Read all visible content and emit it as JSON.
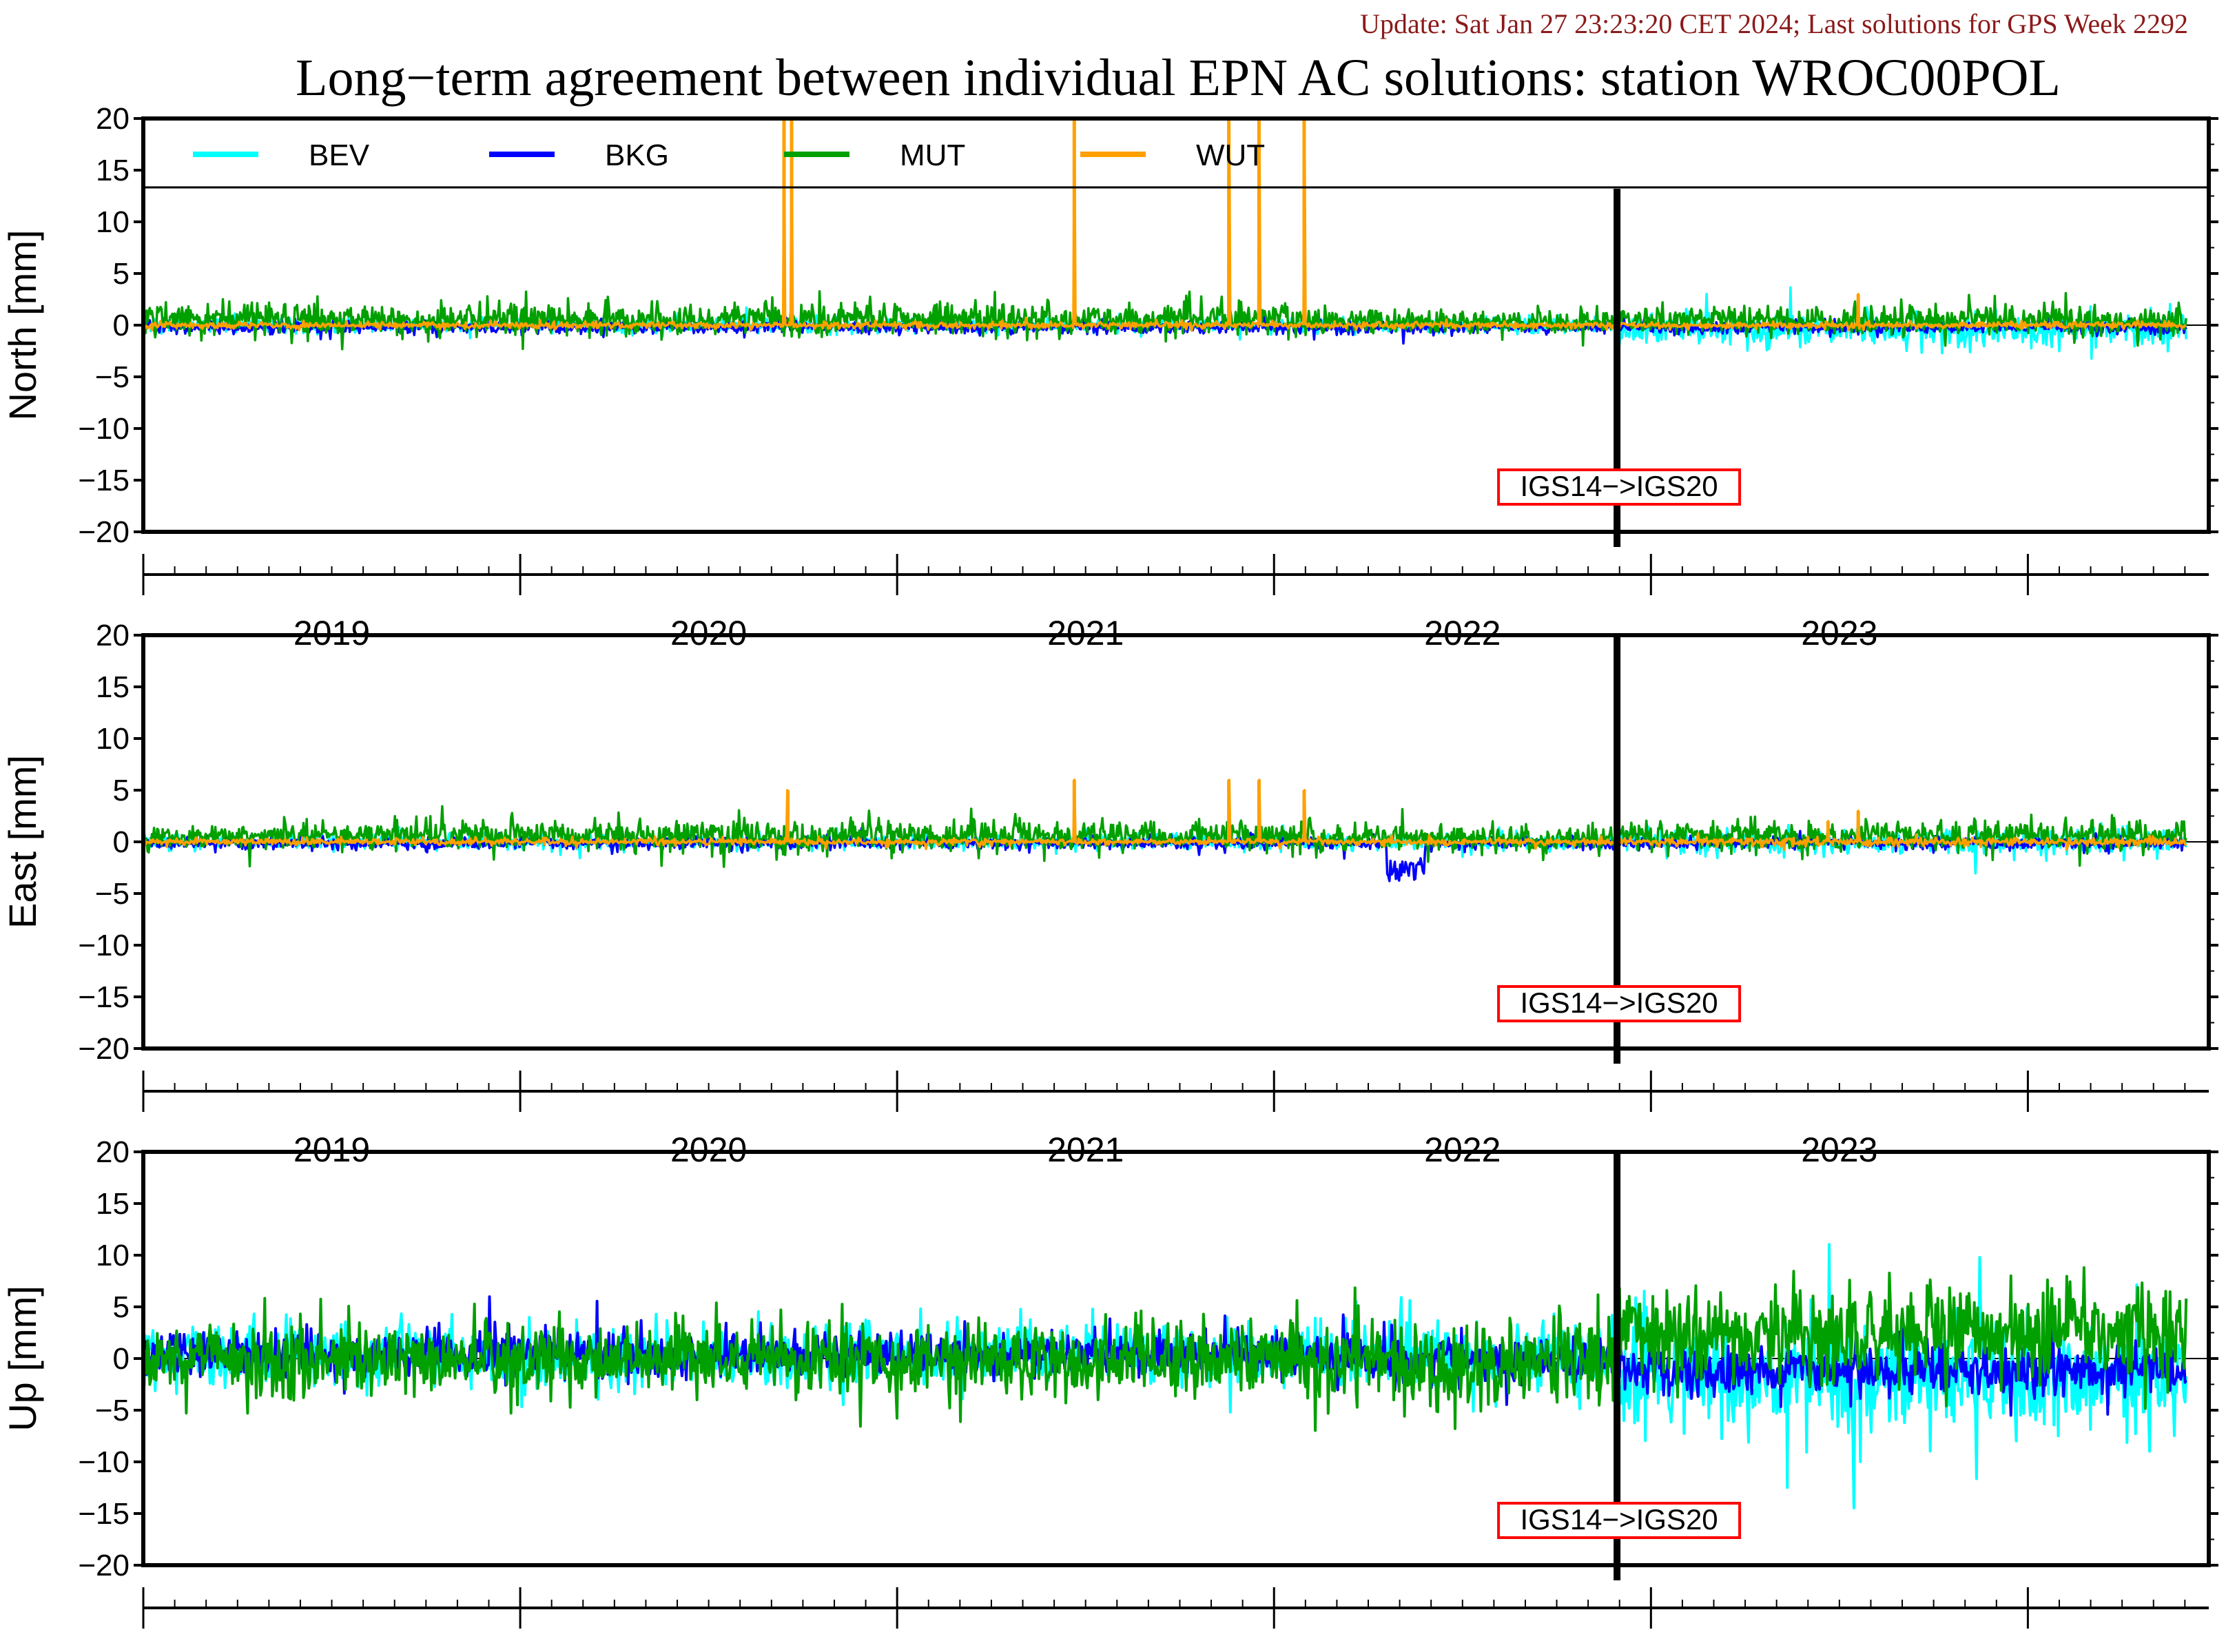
{
  "header": {
    "update_text": "Update: Sat Jan 27 23:23:20 CET 2024; Last solutions for GPS Week 2292",
    "title": "Long−term agreement between individual EPN AC solutions: station WROC00POL"
  },
  "colors": {
    "BEV": "#00ffff",
    "BKG": "#0000ff",
    "MUT": "#00a000",
    "WUT": "#ffa000",
    "update_text": "#8b1a1a",
    "marker_box": "#ff0000"
  },
  "chart_data": [
    {
      "type": "line",
      "component": "north",
      "ylabel": "North [mm]",
      "ylim": [
        -20,
        20
      ],
      "yticks": [
        20,
        15,
        10,
        5,
        0,
        -5,
        -10,
        -15,
        -20
      ],
      "ytick_labels": [
        "20",
        "15",
        "10",
        "5",
        "0",
        "−5",
        "−10",
        "−15",
        "−20"
      ],
      "xlim": [
        2018.5,
        2023.98
      ],
      "xtick_labels": [
        "2019",
        "2020",
        "2021",
        "2022",
        "2023"
      ],
      "legend": [
        "BEV",
        "BKG",
        "MUT",
        "WUT"
      ],
      "reference_change": {
        "x": 2022.41,
        "label": "IGS14−>IGS20"
      },
      "series": [
        {
          "name": "BEV",
          "noise": [
            0.35,
            0.35,
            0.8
          ],
          "bias": [
            0,
            0,
            -0.4
          ]
        },
        {
          "name": "BKG",
          "noise": [
            0.3,
            0.3,
            0.3
          ],
          "bias": [
            -0.2,
            -0.2,
            -0.2
          ]
        },
        {
          "name": "MUT",
          "noise": [
            0.8,
            0.6,
            0.7
          ],
          "bias": [
            0.6,
            0.3,
            0.5
          ]
        },
        {
          "name": "WUT",
          "noise": [
            0.15,
            0.15,
            0.15
          ],
          "bias": [
            0,
            0,
            0
          ],
          "spikes": [
            [
              2020.2,
              20
            ],
            [
              2020.22,
              20
            ],
            [
              2020.97,
              20
            ],
            [
              2021.38,
              20
            ],
            [
              2021.46,
              20
            ],
            [
              2021.58,
              20
            ],
            [
              2023.05,
              3
            ]
          ]
        }
      ]
    },
    {
      "type": "line",
      "component": "east",
      "ylabel": "East [mm]",
      "ylim": [
        -20,
        20
      ],
      "yticks": [
        20,
        15,
        10,
        5,
        0,
        -5,
        -10,
        -15,
        -20
      ],
      "ytick_labels": [
        "20",
        "15",
        "10",
        "5",
        "0",
        "−5",
        "−10",
        "−15",
        "−20"
      ],
      "xlim": [
        2018.5,
        2023.98
      ],
      "xtick_labels": [
        "2019",
        "2020",
        "2021",
        "2022",
        "2023"
      ],
      "reference_change": {
        "x": 2022.41,
        "label": "IGS14−>IGS20"
      },
      "series": [
        {
          "name": "BEV",
          "noise": [
            0.35,
            0.4,
            0.6
          ],
          "bias": [
            0,
            0,
            0
          ]
        },
        {
          "name": "BKG",
          "noise": [
            0.3,
            0.3,
            0.3
          ],
          "bias": [
            -0.1,
            -0.1,
            -0.1
          ],
          "dip": [
            2021.8,
            2021.9,
            -3.5
          ]
        },
        {
          "name": "MUT",
          "noise": [
            0.7,
            0.6,
            0.7
          ],
          "bias": [
            0.6,
            0.3,
            0.6
          ]
        },
        {
          "name": "WUT",
          "noise": [
            0.15,
            0.15,
            0.2
          ],
          "bias": [
            0,
            0,
            0
          ],
          "spikes": [
            [
              2020.21,
              5
            ],
            [
              2020.97,
              6
            ],
            [
              2021.38,
              6
            ],
            [
              2021.46,
              6
            ],
            [
              2021.58,
              5
            ],
            [
              2022.97,
              2
            ],
            [
              2023.05,
              3
            ]
          ]
        }
      ]
    },
    {
      "type": "line",
      "component": "up",
      "ylabel": "Up [mm]",
      "ylim": [
        -20,
        20
      ],
      "yticks": [
        20,
        15,
        10,
        5,
        0,
        -5,
        -10,
        -15,
        -20
      ],
      "ytick_labels": [
        "20",
        "15",
        "10",
        "5",
        "0",
        "−5",
        "−10",
        "−15",
        "−20"
      ],
      "xlim": [
        2018.5,
        2023.98
      ],
      "xtick_labels": [
        "2019",
        "2020",
        "2021",
        "2022",
        "2023"
      ],
      "reference_change": {
        "x": 2022.41,
        "label": "IGS14−>IGS20"
      },
      "series": [
        {
          "name": "BEV",
          "noise": [
            1.4,
            1.6,
            2.6
          ],
          "bias": [
            0.3,
            0.2,
            -1.8
          ]
        },
        {
          "name": "BKG",
          "noise": [
            1.1,
            1.2,
            1.2
          ],
          "bias": [
            0.4,
            0.0,
            -1.2
          ]
        },
        {
          "name": "MUT",
          "noise": [
            1.8,
            2.2,
            2.3
          ],
          "bias": [
            0.0,
            -0.3,
            2.6
          ]
        },
        {
          "name": "WUT",
          "noise": [
            0,
            0,
            0
          ],
          "bias": [
            0,
            0,
            0
          ]
        }
      ]
    }
  ]
}
